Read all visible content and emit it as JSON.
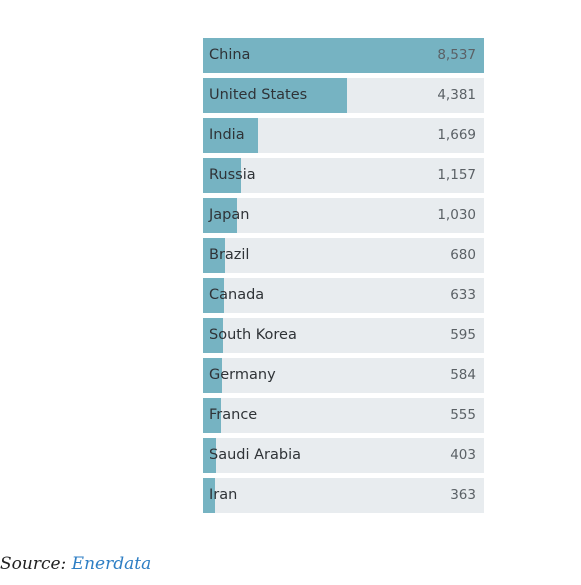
{
  "chart_data": {
    "type": "bar",
    "orientation": "horizontal",
    "categories": [
      "China",
      "United States",
      "India",
      "Russia",
      "Japan",
      "Brazil",
      "Canada",
      "South Korea",
      "Germany",
      "France",
      "Saudi Arabia",
      "Iran"
    ],
    "values": [
      8537,
      4381,
      1669,
      1157,
      1030,
      680,
      633,
      595,
      584,
      555,
      403,
      363
    ],
    "value_labels": [
      "8,537",
      "4,381",
      "1,669",
      "1,157",
      "1,030",
      "680",
      "633",
      "595",
      "584",
      "555",
      "403",
      "363"
    ],
    "xlim": [
      0,
      8537
    ],
    "grid": false,
    "bar_color": "#76b3c2",
    "track_color": "#e8ecef"
  },
  "source": {
    "prefix": "Source:",
    "link_text": "Enerdata"
  }
}
